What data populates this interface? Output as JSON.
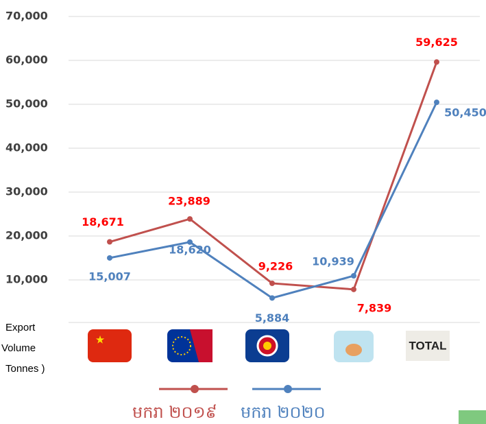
{
  "chart_data": {
    "type": "line",
    "y_label": [
      "Export",
      "Volume",
      "Tonnes )"
    ],
    "categories": [
      null,
      null,
      null,
      null,
      "TOTAL"
    ],
    "series": [
      {
        "name": "មករា ២០១៩",
        "color": "#c0504d",
        "values": [
          18671,
          23889,
          9226,
          7839,
          59625
        ],
        "value_labels": [
          "18,671",
          "23,889",
          "9,226",
          "7,839",
          "59,625"
        ]
      },
      {
        "name": "មករា ២០២០",
        "color": "#4f81bd",
        "values": [
          15007,
          18620,
          5884,
          10939,
          50450
        ],
        "value_labels": [
          "15,007",
          "18,620",
          "5,884",
          "10,939",
          "50,450"
        ]
      }
    ],
    "ylim": [
      0,
      70000
    ],
    "yticks": [
      {
        "value": 10000,
        "label": "10,000"
      },
      {
        "value": 20000,
        "label": "20,000"
      },
      {
        "value": 30000,
        "label": "30,000"
      },
      {
        "value": 40000,
        "label": "40,000"
      },
      {
        "value": 50000,
        "label": "50,000"
      },
      {
        "value": 60000,
        "label": "60,000"
      },
      {
        "value": 70000,
        "label": "70,000"
      }
    ],
    "grid": true
  }
}
